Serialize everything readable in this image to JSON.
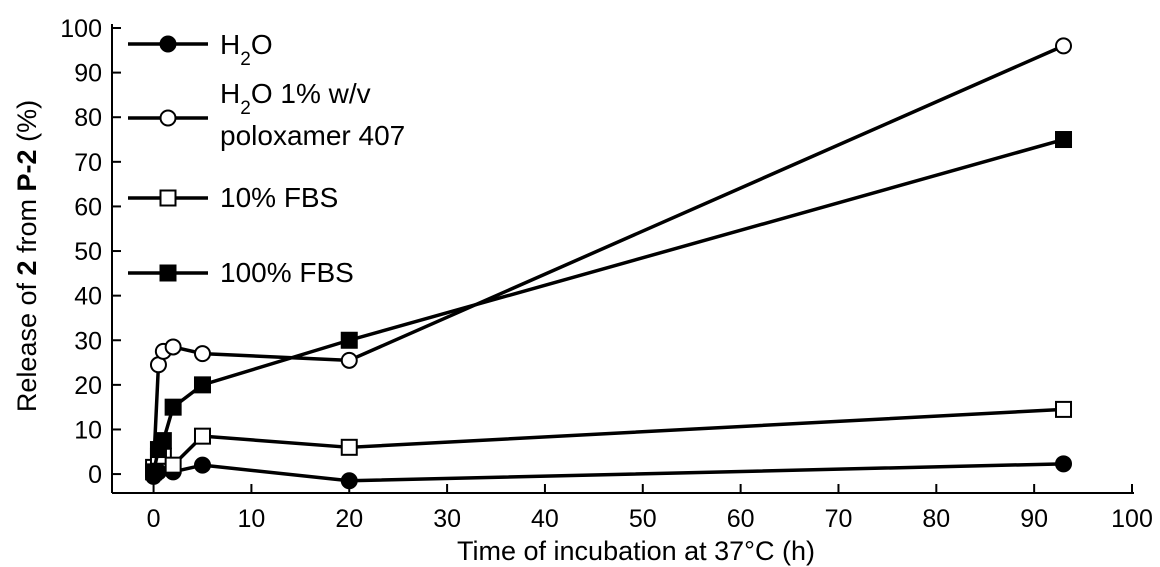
{
  "chart_data": {
    "type": "line",
    "title": "",
    "xlabel": "Time of incubation at 37°C (h)",
    "ylabel_parts": [
      "Release of ",
      "2",
      " from ",
      "P-2",
      " (%)"
    ],
    "xlim": [
      -2,
      100
    ],
    "ylim": [
      -2,
      100
    ],
    "xticks": [
      0,
      10,
      20,
      30,
      40,
      50,
      60,
      70,
      80,
      90,
      100
    ],
    "yticks": [
      0,
      10,
      20,
      30,
      40,
      50,
      60,
      70,
      80,
      90,
      100
    ],
    "grid": false,
    "legend_position": "top-left",
    "series": [
      {
        "name_parts": [
          [
            "H",
            ""
          ],
          [
            "2",
            "sub"
          ],
          [
            "O",
            ""
          ]
        ],
        "marker": "circle-filled",
        "points": [
          [
            0,
            -0.5
          ],
          [
            0.5,
            0.5
          ],
          [
            2,
            0.5
          ],
          [
            5,
            2
          ],
          [
            20,
            -1.5
          ],
          [
            93,
            2.3
          ]
        ]
      },
      {
        "name_parts": [
          [
            "H",
            ""
          ],
          [
            "2",
            "sub"
          ],
          [
            "O 1% w/v",
            ""
          ]
        ],
        "name_line2": "poloxamer 407",
        "marker": "circle-open",
        "points": [
          [
            0,
            1.5
          ],
          [
            0.5,
            24.5
          ],
          [
            1,
            27.5
          ],
          [
            2,
            28.5
          ],
          [
            5,
            27
          ],
          [
            20,
            25.5
          ],
          [
            93,
            96
          ]
        ]
      },
      {
        "name_parts": [
          [
            "10% FBS",
            ""
          ]
        ],
        "marker": "square-open",
        "points": [
          [
            0,
            1.5
          ],
          [
            0.5,
            4
          ],
          [
            1,
            4
          ],
          [
            2,
            2
          ],
          [
            5,
            8.5
          ],
          [
            20,
            6
          ],
          [
            93,
            14.5
          ]
        ]
      },
      {
        "name_parts": [
          [
            "100% FBS",
            ""
          ]
        ],
        "marker": "square-filled",
        "points": [
          [
            0,
            0.5
          ],
          [
            0.5,
            5.5
          ],
          [
            1,
            7.5
          ],
          [
            2,
            15
          ],
          [
            5,
            20
          ],
          [
            20,
            30
          ],
          [
            93,
            75
          ]
        ]
      }
    ]
  }
}
